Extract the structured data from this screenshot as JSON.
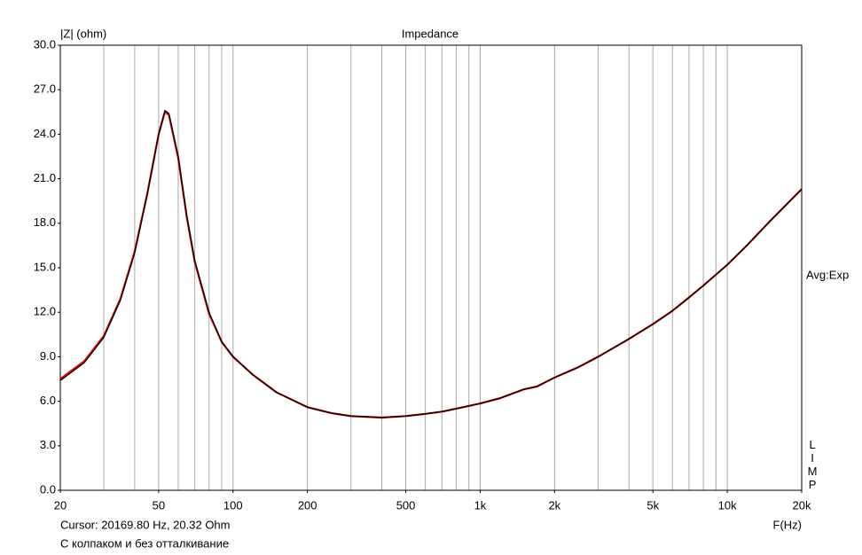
{
  "chart_data": {
    "type": "line",
    "title": "Impedance",
    "y_label": "|Z| (ohm)",
    "x_label": "F(Hz)",
    "annotations": {
      "right": "Avg:Exp",
      "brand": "LIMP",
      "cursor": "Cursor: 20169.80 Hz, 20.32 Ohm",
      "caption": "С колпаком и без отталкивание"
    },
    "log_x": true,
    "grid": true,
    "x": [
      20,
      25,
      30,
      35,
      40,
      45,
      50,
      53,
      55,
      60,
      65,
      70,
      80,
      90,
      100,
      120,
      150,
      200,
      250,
      300,
      400,
      500,
      600,
      700,
      800,
      1000,
      1200,
      1500,
      1700,
      2000,
      2500,
      3000,
      4000,
      5000,
      6000,
      7000,
      8000,
      10000,
      12000,
      15000,
      20000
    ],
    "series": [
      {
        "color": "#e00000",
        "values": [
          7.5,
          8.7,
          10.4,
          12.9,
          16.1,
          20.0,
          24.0,
          25.5,
          25.3,
          22.4,
          18.4,
          15.4,
          11.9,
          10.0,
          9.0,
          7.8,
          6.6,
          5.6,
          5.2,
          5.0,
          4.9,
          5.0,
          5.15,
          5.3,
          5.5,
          5.85,
          6.2,
          6.8,
          7.0,
          7.6,
          8.3,
          9.0,
          10.2,
          11.2,
          12.1,
          13.0,
          13.8,
          15.2,
          16.5,
          18.2,
          20.3
        ]
      },
      {
        "color": "#000000",
        "values": [
          7.4,
          8.6,
          10.3,
          12.8,
          16.0,
          20.0,
          24.0,
          25.6,
          25.4,
          22.5,
          18.5,
          15.5,
          12.0,
          10.0,
          9.0,
          7.8,
          6.6,
          5.6,
          5.2,
          5.0,
          4.9,
          5.0,
          5.15,
          5.3,
          5.5,
          5.85,
          6.2,
          6.8,
          7.0,
          7.6,
          8.3,
          9.0,
          10.2,
          11.2,
          12.1,
          13.0,
          13.8,
          15.2,
          16.5,
          18.2,
          20.3
        ]
      }
    ],
    "xlim": [
      20,
      20000
    ],
    "xticks": [
      20,
      50,
      100,
      200,
      500,
      {
        "value": 1000,
        "label": "1k"
      },
      {
        "value": 2000,
        "label": "2k"
      },
      {
        "value": 5000,
        "label": "5k"
      },
      {
        "value": 10000,
        "label": "10k"
      },
      {
        "value": 20000,
        "label": "20k"
      }
    ],
    "xgrid": [
      30,
      40,
      50,
      60,
      70,
      80,
      90,
      100,
      200,
      300,
      400,
      500,
      600,
      700,
      800,
      900,
      1000,
      2000,
      3000,
      4000,
      5000,
      6000,
      7000,
      8000,
      9000,
      10000
    ],
    "ylim": [
      0,
      30
    ],
    "yticks": [
      {
        "value": 0,
        "label": "0.0"
      },
      {
        "value": 3,
        "label": "3.0"
      },
      {
        "value": 6,
        "label": "6.0"
      },
      {
        "value": 9,
        "label": "9.0"
      },
      {
        "value": 12,
        "label": "12.0"
      },
      {
        "value": 15,
        "label": "15.0"
      },
      {
        "value": 18,
        "label": "18.0"
      },
      {
        "value": 21,
        "label": "21.0"
      },
      {
        "value": 24,
        "label": "24.0"
      },
      {
        "value": 27,
        "label": "27.0"
      },
      {
        "value": 30,
        "label": "30.0"
      }
    ]
  }
}
